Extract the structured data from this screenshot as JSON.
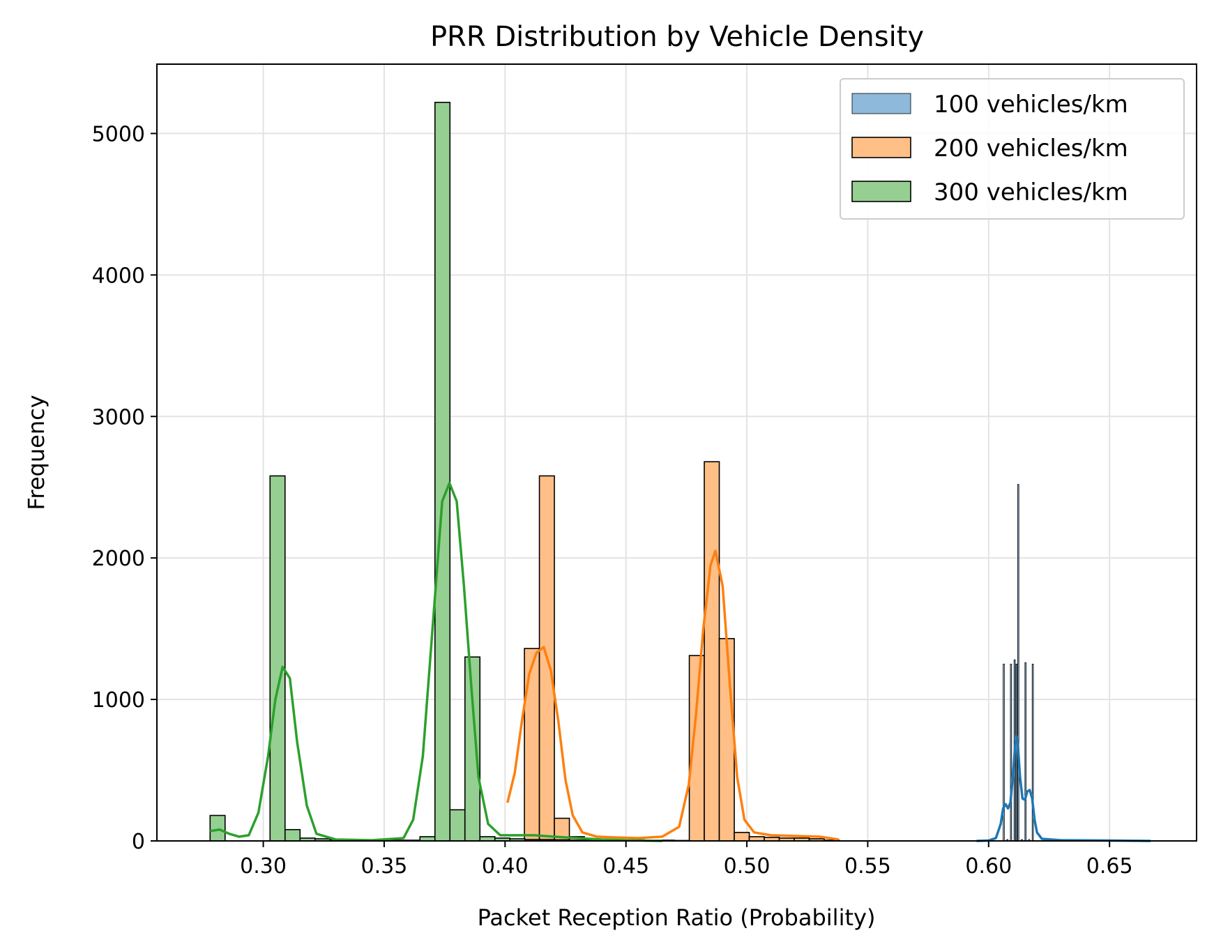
{
  "chart_data": {
    "type": "histogram",
    "title": "PRR Distribution by Vehicle Density",
    "xlabel": "Packet Reception Ratio (Probability)",
    "ylabel": "Frequency",
    "xlim": [
      0.256,
      0.686
    ],
    "ylim": [
      0,
      5490
    ],
    "xticks": [
      0.3,
      0.35,
      0.4,
      0.45,
      0.5,
      0.55,
      0.6,
      0.65
    ],
    "xtick_labels": [
      "0.30",
      "0.35",
      "0.40",
      "0.45",
      "0.50",
      "0.55",
      "0.60",
      "0.65"
    ],
    "yticks": [
      0,
      1000,
      2000,
      3000,
      4000,
      5000
    ],
    "ytick_labels": [
      "0",
      "1000",
      "2000",
      "3000",
      "4000",
      "5000"
    ],
    "grid": true,
    "legend_position": "top-right",
    "series": [
      {
        "name": "100 vehicles/km",
        "color": "#1f77b4",
        "fill": "#8fb9da",
        "bin_width": 0.00051,
        "bins": [
          [
            0.606,
            1250
          ],
          [
            0.6075,
            10
          ],
          [
            0.609,
            1250
          ],
          [
            0.6105,
            1280
          ],
          [
            0.6113,
            1250
          ],
          [
            0.612,
            2520
          ],
          [
            0.6135,
            10
          ],
          [
            0.615,
            1260
          ],
          [
            0.6165,
            10
          ],
          [
            0.618,
            1250
          ]
        ],
        "kde": [
          [
            0.595,
            0
          ],
          [
            0.6,
            3
          ],
          [
            0.603,
            20
          ],
          [
            0.605,
            120
          ],
          [
            0.606,
            230
          ],
          [
            0.607,
            260
          ],
          [
            0.608,
            230
          ],
          [
            0.609,
            270
          ],
          [
            0.61,
            450
          ],
          [
            0.611,
            680
          ],
          [
            0.6115,
            740
          ],
          [
            0.612,
            700
          ],
          [
            0.613,
            450
          ],
          [
            0.614,
            300
          ],
          [
            0.615,
            290
          ],
          [
            0.616,
            350
          ],
          [
            0.617,
            360
          ],
          [
            0.618,
            300
          ],
          [
            0.619,
            150
          ],
          [
            0.62,
            60
          ],
          [
            0.622,
            15
          ],
          [
            0.63,
            5
          ],
          [
            0.65,
            3
          ],
          [
            0.667,
            0
          ]
        ]
      },
      {
        "name": "200 vehicles/km",
        "color": "#ff7f0e",
        "fill": "#ffbf87",
        "bin_width": 0.0062,
        "bins": [
          [
            0.4018,
            0
          ],
          [
            0.408,
            1360
          ],
          [
            0.4142,
            2580
          ],
          [
            0.4204,
            160
          ],
          [
            0.4266,
            30
          ],
          [
            0.4328,
            15
          ],
          [
            0.439,
            10
          ],
          [
            0.4452,
            8
          ],
          [
            0.4514,
            8
          ],
          [
            0.4576,
            5
          ],
          [
            0.4638,
            5
          ],
          [
            0.47,
            3
          ],
          [
            0.4762,
            1310
          ],
          [
            0.4824,
            2680
          ],
          [
            0.4886,
            1430
          ],
          [
            0.4948,
            60
          ],
          [
            0.501,
            30
          ],
          [
            0.5072,
            25
          ],
          [
            0.5134,
            20
          ],
          [
            0.5196,
            20
          ],
          [
            0.5258,
            15
          ],
          [
            0.532,
            5
          ]
        ],
        "kde": [
          [
            0.401,
            270
          ],
          [
            0.404,
            480
          ],
          [
            0.407,
            850
          ],
          [
            0.41,
            1180
          ],
          [
            0.413,
            1330
          ],
          [
            0.416,
            1370
          ],
          [
            0.419,
            1200
          ],
          [
            0.422,
            850
          ],
          [
            0.425,
            430
          ],
          [
            0.428,
            180
          ],
          [
            0.432,
            60
          ],
          [
            0.438,
            30
          ],
          [
            0.445,
            25
          ],
          [
            0.455,
            20
          ],
          [
            0.465,
            30
          ],
          [
            0.472,
            100
          ],
          [
            0.476,
            400
          ],
          [
            0.479,
            900
          ],
          [
            0.482,
            1500
          ],
          [
            0.485,
            1950
          ],
          [
            0.487,
            2050
          ],
          [
            0.49,
            1800
          ],
          [
            0.493,
            1100
          ],
          [
            0.496,
            450
          ],
          [
            0.499,
            150
          ],
          [
            0.503,
            60
          ],
          [
            0.51,
            40
          ],
          [
            0.52,
            35
          ],
          [
            0.53,
            30
          ],
          [
            0.538,
            10
          ]
        ]
      },
      {
        "name": "300 vehicles/km",
        "color": "#2ca02c",
        "fill": "#96cf92",
        "bin_width": 0.0062,
        "bins": [
          [
            0.278,
            180
          ],
          [
            0.2842,
            0
          ],
          [
            0.2904,
            0
          ],
          [
            0.2966,
            0
          ],
          [
            0.3028,
            2580
          ],
          [
            0.309,
            80
          ],
          [
            0.3152,
            20
          ],
          [
            0.3214,
            15
          ],
          [
            0.3276,
            10
          ],
          [
            0.3338,
            5
          ],
          [
            0.34,
            5
          ],
          [
            0.3462,
            5
          ],
          [
            0.3524,
            5
          ],
          [
            0.3586,
            5
          ],
          [
            0.3648,
            30
          ],
          [
            0.371,
            5220
          ],
          [
            0.3772,
            220
          ],
          [
            0.3834,
            1300
          ],
          [
            0.3896,
            30
          ],
          [
            0.3958,
            20
          ],
          [
            0.402,
            15
          ],
          [
            0.4082,
            10
          ],
          [
            0.4144,
            10
          ],
          [
            0.4206,
            8
          ],
          [
            0.4268,
            5
          ],
          [
            0.433,
            5
          ],
          [
            0.4392,
            3
          ]
        ],
        "kde": [
          [
            0.278,
            70
          ],
          [
            0.282,
            80
          ],
          [
            0.286,
            50
          ],
          [
            0.29,
            30
          ],
          [
            0.294,
            40
          ],
          [
            0.298,
            200
          ],
          [
            0.302,
            600
          ],
          [
            0.305,
            1000
          ],
          [
            0.308,
            1230
          ],
          [
            0.311,
            1150
          ],
          [
            0.314,
            700
          ],
          [
            0.318,
            250
          ],
          [
            0.322,
            50
          ],
          [
            0.33,
            10
          ],
          [
            0.345,
            5
          ],
          [
            0.358,
            20
          ],
          [
            0.362,
            150
          ],
          [
            0.366,
            600
          ],
          [
            0.37,
            1500
          ],
          [
            0.374,
            2400
          ],
          [
            0.377,
            2530
          ],
          [
            0.38,
            2400
          ],
          [
            0.383,
            1800
          ],
          [
            0.386,
            1100
          ],
          [
            0.389,
            450
          ],
          [
            0.393,
            120
          ],
          [
            0.398,
            40
          ],
          [
            0.405,
            40
          ],
          [
            0.412,
            40
          ],
          [
            0.42,
            30
          ],
          [
            0.43,
            20
          ],
          [
            0.44,
            10
          ],
          [
            0.45,
            5
          ],
          [
            0.465,
            0
          ]
        ]
      }
    ]
  }
}
